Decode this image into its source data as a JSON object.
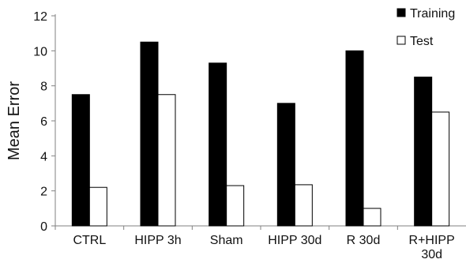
{
  "chart_data": {
    "type": "bar",
    "title": "",
    "xlabel": "",
    "ylabel": "Mean Error",
    "ylim": [
      0,
      12
    ],
    "yticks": [
      "0",
      "2",
      "4",
      "6",
      "8",
      "10",
      "12"
    ],
    "categories": [
      [
        "CTRL"
      ],
      [
        "HIPP 3h"
      ],
      [
        "Sham"
      ],
      [
        "HIPP 30d"
      ],
      [
        "R 30d"
      ],
      [
        "R+HIPP",
        "30d"
      ]
    ],
    "series": [
      {
        "name": "Training",
        "values": [
          7.5,
          10.5,
          9.3,
          7.0,
          10.0,
          8.5
        ],
        "color": "#000000"
      },
      {
        "name": "Test",
        "values": [
          2.2,
          7.5,
          2.3,
          2.35,
          1.0,
          6.5
        ],
        "color": "#ffffff"
      }
    ],
    "grid": false,
    "legend_position": "top-right"
  }
}
